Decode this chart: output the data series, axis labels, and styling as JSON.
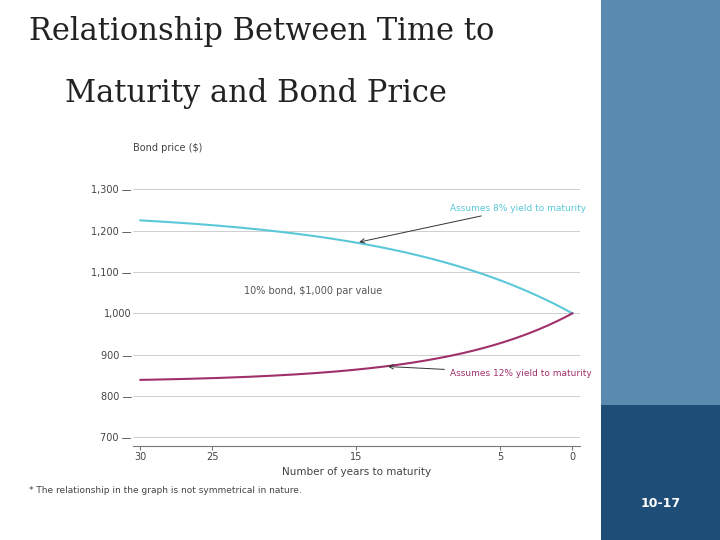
{
  "title_line1": "Relationship Between Time to",
  "title_line2": "Maturity and Bond Price",
  "title_fontsize": 22,
  "title_color": "#222222",
  "bg_color": "#ffffff",
  "xlabel": "Number of years to maturity",
  "ylabel": "Bond price ($)",
  "xticks": [
    30,
    25,
    15,
    5,
    0
  ],
  "ytick_vals": [
    700,
    800,
    900,
    1000,
    1100,
    1200,
    1300
  ],
  "coupon_rate": 0.1,
  "par_value": 1000,
  "ytm_8": 0.08,
  "ytm_12": 0.12,
  "line_color_8": "#5bc8d8",
  "line_color_12": "#a0306a",
  "annotation_8_text": "Assumes 8% yield to maturity",
  "annotation_12_text": "Assumes 12% yield to maturity",
  "center_text": "10% bond, $1,000 par value",
  "footnote": "* The relationship in the graph is not symmetrical in nature.",
  "page_num": "10-17",
  "right_panel_color": "#1e4d78",
  "right_panel_light_color": "#5b8ab0"
}
